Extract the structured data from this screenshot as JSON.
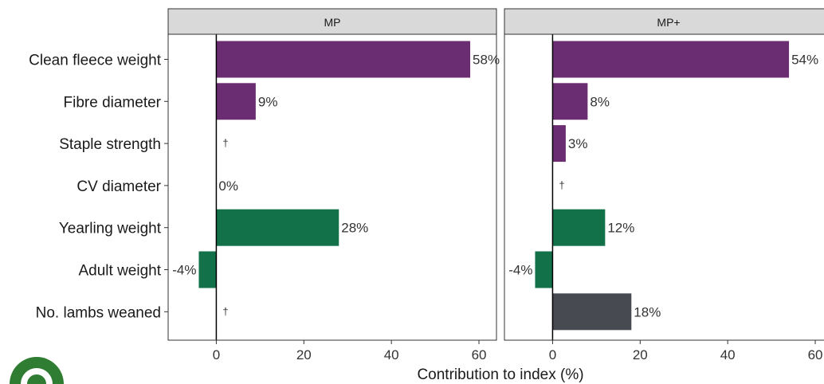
{
  "chart_data": {
    "type": "bar",
    "orientation": "horizontal",
    "xlabel": "Contribution to index (%)",
    "xlim": [
      -11,
      64
    ],
    "xticks": [
      0,
      20,
      40,
      60
    ],
    "categories": [
      "Clean fleece weight",
      "Fibre diameter",
      "Staple strength",
      "CV diameter",
      "Yearling weight",
      "Adult weight",
      "No. lambs weaned"
    ],
    "panels": [
      {
        "name": "MP",
        "values": [
          58,
          9,
          null,
          0,
          28,
          -4,
          null
        ],
        "labels": [
          "58%",
          "9%",
          "†",
          "0%",
          "28%",
          "-4%",
          "†"
        ]
      },
      {
        "name": "MP+",
        "values": [
          54,
          8,
          3,
          null,
          12,
          -4,
          18
        ],
        "labels": [
          "54%",
          "8%",
          "3%",
          "†",
          "12%",
          "-4%",
          "18%"
        ]
      }
    ],
    "category_colors": [
      "#6b2d72",
      "#6b2d72",
      "#6b2d72",
      "#6b2d72",
      "#127149",
      "#127149",
      "#474a50"
    ],
    "grid": false
  }
}
